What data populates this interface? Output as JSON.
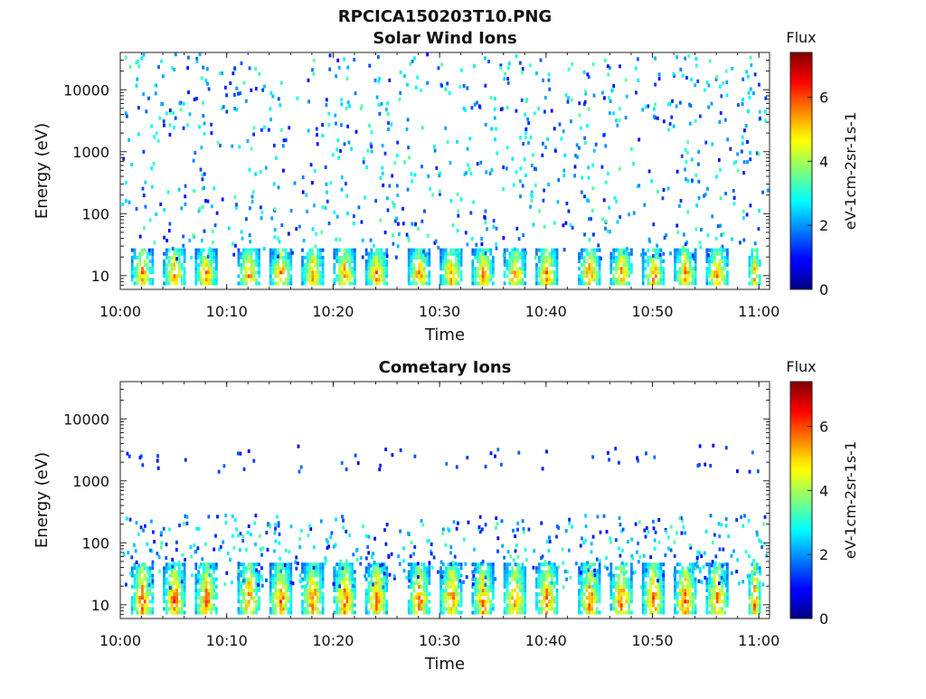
{
  "figure_title": "RPCICA150203T10.PNG",
  "chart_data": [
    {
      "type": "heatmap",
      "title": "Solar Wind Ions",
      "xlabel": "Time",
      "ylabel": "Energy (eV)",
      "yscale": "log",
      "xlim": [
        "10:00",
        "11:01"
      ],
      "ylim": [
        6,
        40000
      ],
      "xticks": [
        "10:00",
        "10:10",
        "10:20",
        "10:30",
        "10:40",
        "10:50",
        "11:00"
      ],
      "yticks": [
        "10",
        "100",
        "1000",
        "10000"
      ],
      "colorbar": {
        "title": "Flux",
        "label": "eV-1cm-2sr-1s-1",
        "range": [
          0,
          7.4
        ],
        "ticks": [
          "0",
          "2",
          "4",
          "6"
        ],
        "colormap": "jet"
      },
      "sweep_period_min": 3.2,
      "bursts": [
        {
          "start": "10:01",
          "end": "10:03",
          "energy_range": [
            8,
            30
          ],
          "peak_flux": 6.5
        },
        {
          "start": "10:04",
          "end": "10:06",
          "energy_range": [
            8,
            30
          ],
          "peak_flux": 6.5
        },
        {
          "start": "10:07",
          "end": "10:09",
          "energy_range": [
            8,
            30
          ],
          "peak_flux": 6.5
        },
        {
          "start": "10:11",
          "end": "10:13",
          "energy_range": [
            8,
            30
          ],
          "peak_flux": 6.5
        },
        {
          "start": "10:14",
          "end": "10:16",
          "energy_range": [
            8,
            30
          ],
          "peak_flux": 6.5
        },
        {
          "start": "10:17",
          "end": "10:19",
          "energy_range": [
            8,
            30
          ],
          "peak_flux": 6.5
        },
        {
          "start": "10:20",
          "end": "10:22",
          "energy_range": [
            8,
            30
          ],
          "peak_flux": 6.5
        },
        {
          "start": "10:23",
          "end": "10:25",
          "energy_range": [
            8,
            30
          ],
          "peak_flux": 6.5
        },
        {
          "start": "10:27",
          "end": "10:29",
          "energy_range": [
            8,
            30
          ],
          "peak_flux": 6.5
        },
        {
          "start": "10:30",
          "end": "10:32",
          "energy_range": [
            8,
            30
          ],
          "peak_flux": 6.5
        },
        {
          "start": "10:33",
          "end": "10:35",
          "energy_range": [
            8,
            30
          ],
          "peak_flux": 6.5
        },
        {
          "start": "10:36",
          "end": "10:38",
          "energy_range": [
            8,
            30
          ],
          "peak_flux": 6.5
        },
        {
          "start": "10:39",
          "end": "10:41",
          "energy_range": [
            8,
            30
          ],
          "peak_flux": 6.5
        },
        {
          "start": "10:43",
          "end": "10:45",
          "energy_range": [
            8,
            30
          ],
          "peak_flux": 6.5
        },
        {
          "start": "10:46",
          "end": "10:48",
          "energy_range": [
            8,
            30
          ],
          "peak_flux": 6.5
        },
        {
          "start": "10:49",
          "end": "10:51",
          "energy_range": [
            8,
            30
          ],
          "peak_flux": 6.5
        },
        {
          "start": "10:52",
          "end": "10:54",
          "energy_range": [
            8,
            30
          ],
          "peak_flux": 6.5
        },
        {
          "start": "10:55",
          "end": "10:57",
          "energy_range": [
            8,
            30
          ],
          "peak_flux": 6.5
        },
        {
          "start": "10:59",
          "end": "11:00",
          "energy_range": [
            8,
            30
          ],
          "peak_flux": 6.5
        }
      ],
      "scatter_energy_range": [
        20,
        40000
      ]
    },
    {
      "type": "heatmap",
      "title": "Cometary Ions",
      "xlabel": "Time",
      "ylabel": "Energy (eV)",
      "yscale": "log",
      "xlim": [
        "10:00",
        "11:01"
      ],
      "ylim": [
        6,
        40000
      ],
      "xticks": [
        "10:00",
        "10:10",
        "10:20",
        "10:30",
        "10:40",
        "10:50",
        "11:00"
      ],
      "yticks": [
        "10",
        "100",
        "1000",
        "10000"
      ],
      "colorbar": {
        "title": "Flux",
        "label": "eV-1cm-2sr-1s-1",
        "range": [
          0,
          7.4
        ],
        "ticks": [
          "0",
          "2",
          "4",
          "6"
        ],
        "colormap": "jet"
      },
      "sweep_period_min": 3.2,
      "bursts": [
        {
          "start": "10:01",
          "end": "10:03",
          "energy_range": [
            8,
            50
          ],
          "peak_flux": 6.8
        },
        {
          "start": "10:04",
          "end": "10:06",
          "energy_range": [
            8,
            50
          ],
          "peak_flux": 6.8
        },
        {
          "start": "10:07",
          "end": "10:09",
          "energy_range": [
            8,
            50
          ],
          "peak_flux": 6.8
        },
        {
          "start": "10:11",
          "end": "10:13",
          "energy_range": [
            8,
            50
          ],
          "peak_flux": 6.8
        },
        {
          "start": "10:14",
          "end": "10:16",
          "energy_range": [
            8,
            50
          ],
          "peak_flux": 6.8
        },
        {
          "start": "10:17",
          "end": "10:19",
          "energy_range": [
            8,
            50
          ],
          "peak_flux": 6.8
        },
        {
          "start": "10:20",
          "end": "10:22",
          "energy_range": [
            8,
            50
          ],
          "peak_flux": 6.8
        },
        {
          "start": "10:23",
          "end": "10:25",
          "energy_range": [
            8,
            50
          ],
          "peak_flux": 6.8
        },
        {
          "start": "10:27",
          "end": "10:29",
          "energy_range": [
            8,
            50
          ],
          "peak_flux": 6.8
        },
        {
          "start": "10:30",
          "end": "10:32",
          "energy_range": [
            8,
            50
          ],
          "peak_flux": 6.8
        },
        {
          "start": "10:33",
          "end": "10:35",
          "energy_range": [
            8,
            50
          ],
          "peak_flux": 6.8
        },
        {
          "start": "10:36",
          "end": "10:38",
          "energy_range": [
            8,
            50
          ],
          "peak_flux": 6.8
        },
        {
          "start": "10:39",
          "end": "10:41",
          "energy_range": [
            8,
            50
          ],
          "peak_flux": 6.8
        },
        {
          "start": "10:43",
          "end": "10:45",
          "energy_range": [
            8,
            50
          ],
          "peak_flux": 6.8
        },
        {
          "start": "10:46",
          "end": "10:48",
          "energy_range": [
            8,
            50
          ],
          "peak_flux": 6.8
        },
        {
          "start": "10:49",
          "end": "10:51",
          "energy_range": [
            8,
            50
          ],
          "peak_flux": 6.8
        },
        {
          "start": "10:52",
          "end": "10:54",
          "energy_range": [
            8,
            50
          ],
          "peak_flux": 6.8
        },
        {
          "start": "10:55",
          "end": "10:57",
          "energy_range": [
            8,
            50
          ],
          "peak_flux": 6.8
        },
        {
          "start": "10:59",
          "end": "11:00",
          "energy_range": [
            8,
            50
          ],
          "peak_flux": 6.8
        }
      ],
      "scatter_energy_range": [
        20,
        300
      ],
      "sparse_energy_range": [
        1500,
        4000
      ]
    }
  ]
}
